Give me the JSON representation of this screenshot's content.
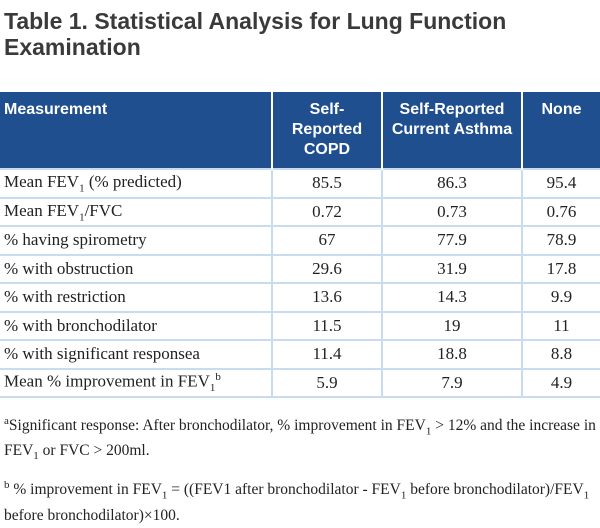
{
  "title": "Table 1. Statistical Analysis for Lung Function Examination",
  "table": {
    "header": [
      "Measurement",
      "Self-Reported COPD",
      "Self-Reported Current Asthma",
      "None"
    ],
    "rows": [
      {
        "label": [
          {
            "t": "Mean FEV"
          },
          {
            "sub": "1"
          },
          {
            "t": " (% predicted)"
          }
        ],
        "values": [
          85.5,
          86.3,
          95.4
        ]
      },
      {
        "label": [
          {
            "t": "Mean FEV"
          },
          {
            "sub": "1"
          },
          {
            "t": "/FVC"
          }
        ],
        "values": [
          0.72,
          0.73,
          0.76
        ]
      },
      {
        "label": [
          {
            "t": "% having spirometry"
          }
        ],
        "values": [
          67,
          77.9,
          78.9
        ]
      },
      {
        "label": [
          {
            "t": "% with obstruction"
          }
        ],
        "values": [
          29.6,
          31.9,
          17.8
        ]
      },
      {
        "label": [
          {
            "t": "% with restriction"
          }
        ],
        "values": [
          13.6,
          14.3,
          9.9
        ]
      },
      {
        "label": [
          {
            "t": "% with bronchodilator"
          }
        ],
        "values": [
          11.5,
          19,
          11
        ]
      },
      {
        "label": [
          {
            "t": "% with significant responsea"
          }
        ],
        "values": [
          11.4,
          18.8,
          8.8
        ]
      },
      {
        "label": [
          {
            "t": "Mean % improvement in FEV"
          },
          {
            "sub": "1"
          },
          {
            "sup": "b"
          }
        ],
        "values": [
          5.9,
          7.9,
          4.9
        ]
      }
    ]
  },
  "footnotes": [
    [
      {
        "sup": "a"
      },
      {
        "t": "Significant response: After bronchodilator, % improvement in FEV"
      },
      {
        "sub": "1"
      },
      {
        "t": " > 12% and the increase in FEV"
      },
      {
        "sub": "1"
      },
      {
        "t": " or FVC > 200ml."
      }
    ],
    [
      {
        "sup": "b"
      },
      {
        "t": " % improvement in FEV"
      },
      {
        "sub": "1"
      },
      {
        "t": " = ((FEV1 after bronchodilator - FEV"
      },
      {
        "sub": "1"
      },
      {
        "t": " before bronchodilator)/FEV"
      },
      {
        "sub": "1"
      },
      {
        "t": " before bronchodilator)×100."
      }
    ]
  ]
}
